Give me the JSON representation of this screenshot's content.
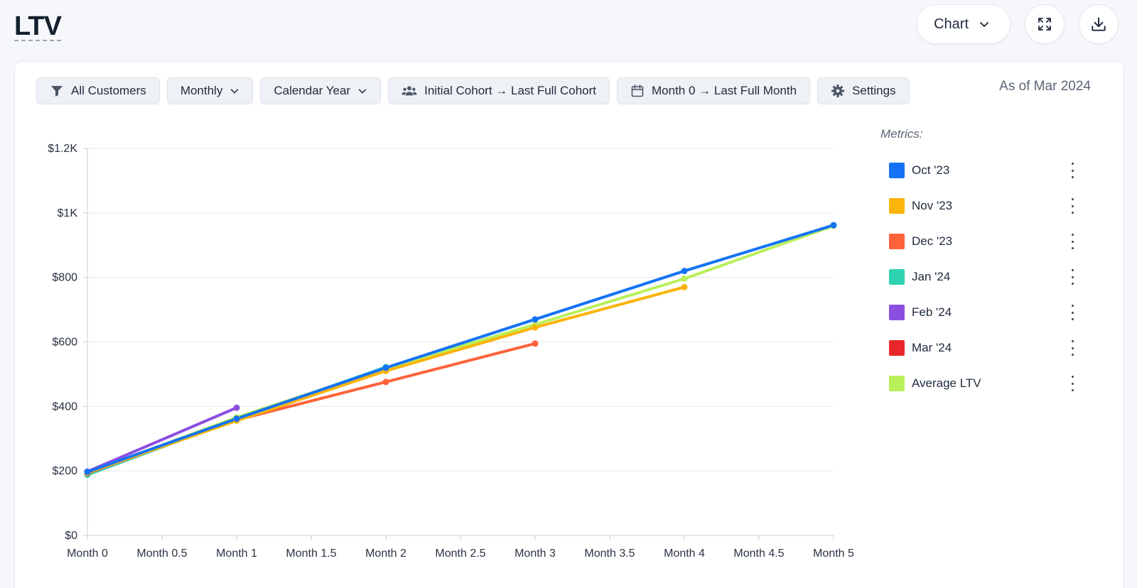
{
  "header": {
    "title": "LTV",
    "view_select_label": "Chart"
  },
  "filters": [
    {
      "label": "All Customers",
      "icon": "funnel-icon"
    },
    {
      "label": "Monthly",
      "icon": "chevron-down-icon"
    },
    {
      "label": "Calendar Year",
      "icon": "chevron-down-icon"
    },
    {
      "label": "Initial Cohort → Last Full Cohort",
      "icon": "users-icon"
    },
    {
      "label": "Month 0 → Last Full Month",
      "icon": "calendar-icon"
    },
    {
      "label": "Settings",
      "icon": "gear-icon"
    }
  ],
  "as_of": "As of Mar 2024",
  "legend": {
    "title": "Metrics:"
  },
  "chart_data": {
    "type": "line",
    "title": "",
    "xlabel": "",
    "ylabel": "",
    "xlim": [
      0,
      5
    ],
    "ylim": [
      0,
      1200
    ],
    "x_ticks": [
      0,
      0.5,
      1,
      1.5,
      2,
      2.5,
      3,
      3.5,
      4,
      4.5,
      5
    ],
    "x_tick_labels": [
      "Month 0",
      "Month 0.5",
      "Month 1",
      "Month 1.5",
      "Month 2",
      "Month 2.5",
      "Month 3",
      "Month 3.5",
      "Month 4",
      "Month 4.5",
      "Month 5"
    ],
    "y_ticks": [
      0,
      200,
      400,
      600,
      800,
      1000,
      1200
    ],
    "y_tick_labels": [
      "$0",
      "$200",
      "$400",
      "$600",
      "$800",
      "$1K",
      "$1.2K"
    ],
    "grid": true,
    "legend_position": "right",
    "series": [
      {
        "name": "Oct '23",
        "color": "#1473f5",
        "x": [
          0,
          1,
          2,
          3,
          4,
          5
        ],
        "values": [
          197,
          362,
          520,
          670,
          820,
          962
        ]
      },
      {
        "name": "Nov '23",
        "color": "#fbb40a",
        "x": [
          0,
          1,
          2,
          3,
          4
        ],
        "values": [
          195,
          356,
          510,
          645,
          770
        ]
      },
      {
        "name": "Dec '23",
        "color": "#ff6239",
        "x": [
          0,
          1,
          2,
          3
        ],
        "values": [
          193,
          358,
          476,
          595
        ]
      },
      {
        "name": "Jan '24",
        "color": "#2dd3b0",
        "x": [
          0,
          1,
          2
        ],
        "values": [
          188,
          360,
          522
        ]
      },
      {
        "name": "Feb '24",
        "color": "#8b4fe0",
        "x": [
          0,
          1
        ],
        "values": [
          198,
          396
        ]
      },
      {
        "name": "Mar '24",
        "color": "#e8272b",
        "x": [
          0
        ],
        "values": [
          196
        ]
      },
      {
        "name": "Average LTV",
        "color": "#b9f05a",
        "x": [
          0,
          1,
          2,
          3,
          4,
          5
        ],
        "values": [
          194,
          366,
          518,
          654,
          796,
          960
        ]
      }
    ]
  }
}
